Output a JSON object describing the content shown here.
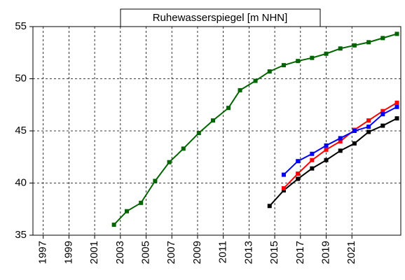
{
  "chart_data": {
    "type": "line",
    "title": "Ruhewasserspiegel [m NHN]",
    "xlim": [
      1996.2,
      2024.8
    ],
    "xticks": [
      1997,
      1999,
      2001,
      2003,
      2005,
      2007,
      2009,
      2011,
      2013,
      2015,
      2017,
      2019,
      2021
    ],
    "ylim": [
      35,
      55
    ],
    "yticks": [
      35,
      40,
      45,
      50,
      55
    ],
    "grid": true,
    "series": [
      {
        "color": "#006400",
        "x": [
          2002.5,
          2003.5,
          2004.6,
          2005.7,
          2006.8,
          2007.9,
          2009.1,
          2010.2,
          2011.4,
          2012.3,
          2013.5,
          2014.6,
          2015.7,
          2016.8,
          2017.9,
          2019.0,
          2020.1,
          2021.2,
          2022.3,
          2023.4,
          2024.5
        ],
        "values": [
          36.0,
          37.3,
          38.1,
          40.2,
          42.0,
          43.3,
          44.8,
          46.0,
          47.2,
          48.9,
          49.8,
          50.7,
          51.3,
          51.7,
          52.0,
          52.4,
          52.9,
          53.2,
          53.5,
          53.9,
          54.3
        ]
      },
      {
        "color": "#000000",
        "x": [
          2014.6,
          2015.7,
          2016.8,
          2017.9,
          2019.0,
          2020.1,
          2021.2,
          2022.3,
          2023.4,
          2024.5
        ],
        "values": [
          37.8,
          39.3,
          40.4,
          41.4,
          42.2,
          43.1,
          43.8,
          44.9,
          45.5,
          46.2
        ]
      },
      {
        "color": "#ff0000",
        "x": [
          2015.7,
          2016.8,
          2017.9,
          2019.0,
          2020.1,
          2021.2,
          2022.3,
          2023.4,
          2024.5
        ],
        "values": [
          39.5,
          40.9,
          42.2,
          43.2,
          44.0,
          45.1,
          46.0,
          46.9,
          47.7
        ]
      },
      {
        "color": "#0000ff",
        "x": [
          2015.7,
          2016.8,
          2017.9,
          2019.0,
          2020.1,
          2021.2,
          2022.3,
          2023.4,
          2024.5
        ],
        "values": [
          40.8,
          42.1,
          42.8,
          43.6,
          44.3,
          45.0,
          45.4,
          46.6,
          47.3
        ]
      }
    ]
  }
}
